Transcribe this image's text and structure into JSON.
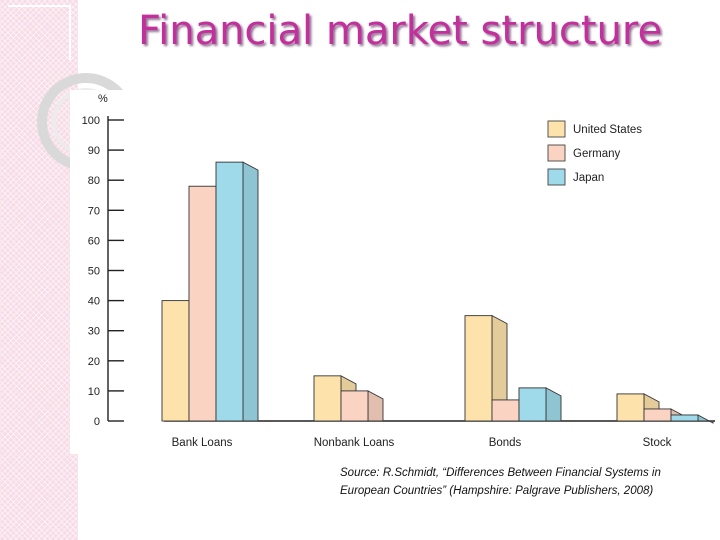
{
  "slide": {
    "title": "Financial market structure",
    "source": "Source: R.Schmidt, “Differences Between Financial Systems in European Countries” (Hampshire: Palgrave Publishers, 2008)"
  },
  "colors": {
    "title": "#c2309c",
    "band": "#f7dbe6",
    "united_states": "#fde3ab",
    "germany": "#fbd3c2",
    "japan": "#9fdaea"
  },
  "chart_data": {
    "type": "bar",
    "title": "",
    "ylabel": "%",
    "xlabel": "",
    "ylim": [
      0,
      100
    ],
    "yticks": [
      "0",
      "10",
      "20",
      "30",
      "40",
      "50",
      "60",
      "70",
      "80",
      "90",
      "100"
    ],
    "grid": false,
    "legend_position": "top-right",
    "categories": [
      "Bank Loans",
      "Nonbank Loans",
      "Bonds",
      "Stock"
    ],
    "series": [
      {
        "name": "United States",
        "color": "#fde3ab",
        "values": [
          40,
          15,
          35,
          9
        ]
      },
      {
        "name": "Germany",
        "color": "#fbd3c2",
        "values": [
          78,
          10,
          7,
          4
        ]
      },
      {
        "name": "Japan",
        "color": "#9fdaea",
        "values": [
          86,
          0,
          11,
          2
        ]
      }
    ]
  }
}
